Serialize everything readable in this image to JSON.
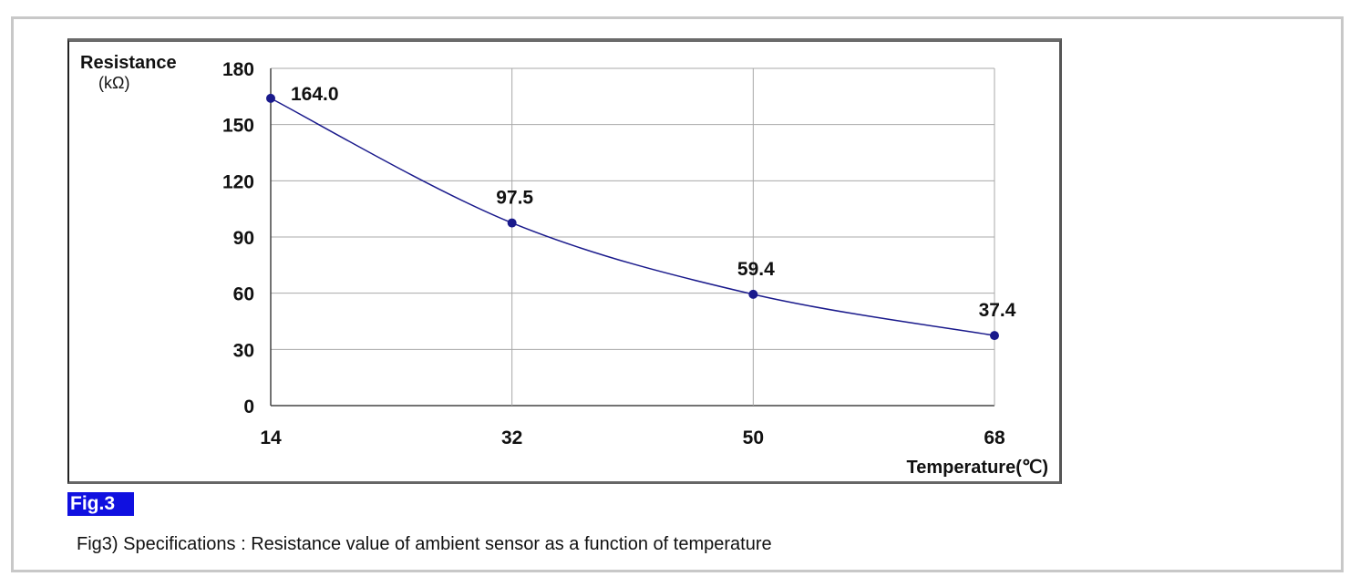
{
  "chart_data": {
    "type": "line",
    "title": "",
    "xlabel": "Temperature(℃)",
    "ylabel": "Resistance",
    "ylabel_unit": "(kΩ)",
    "x": [
      14,
      32,
      50,
      68
    ],
    "x_tick_labels": [
      "14",
      "32",
      "50",
      "68"
    ],
    "y_ticks": [
      0,
      30,
      60,
      90,
      120,
      150,
      180
    ],
    "y_tick_labels": [
      "0",
      "30",
      "60",
      "90",
      "120",
      "150",
      "180"
    ],
    "ylim": [
      0,
      180
    ],
    "xlim": [
      14,
      68
    ],
    "grid": true,
    "series": [
      {
        "name": "Resistance",
        "values": [
          164.0,
          97.5,
          59.4,
          37.4
        ],
        "labels": [
          "164.0",
          "97.5",
          "59.4",
          "37.4"
        ],
        "color": "#1a1a8c"
      }
    ]
  },
  "figure_label": "Fig.3",
  "caption": "Fig3) Specifications : Resistance value of ambient sensor as a function of temperature"
}
